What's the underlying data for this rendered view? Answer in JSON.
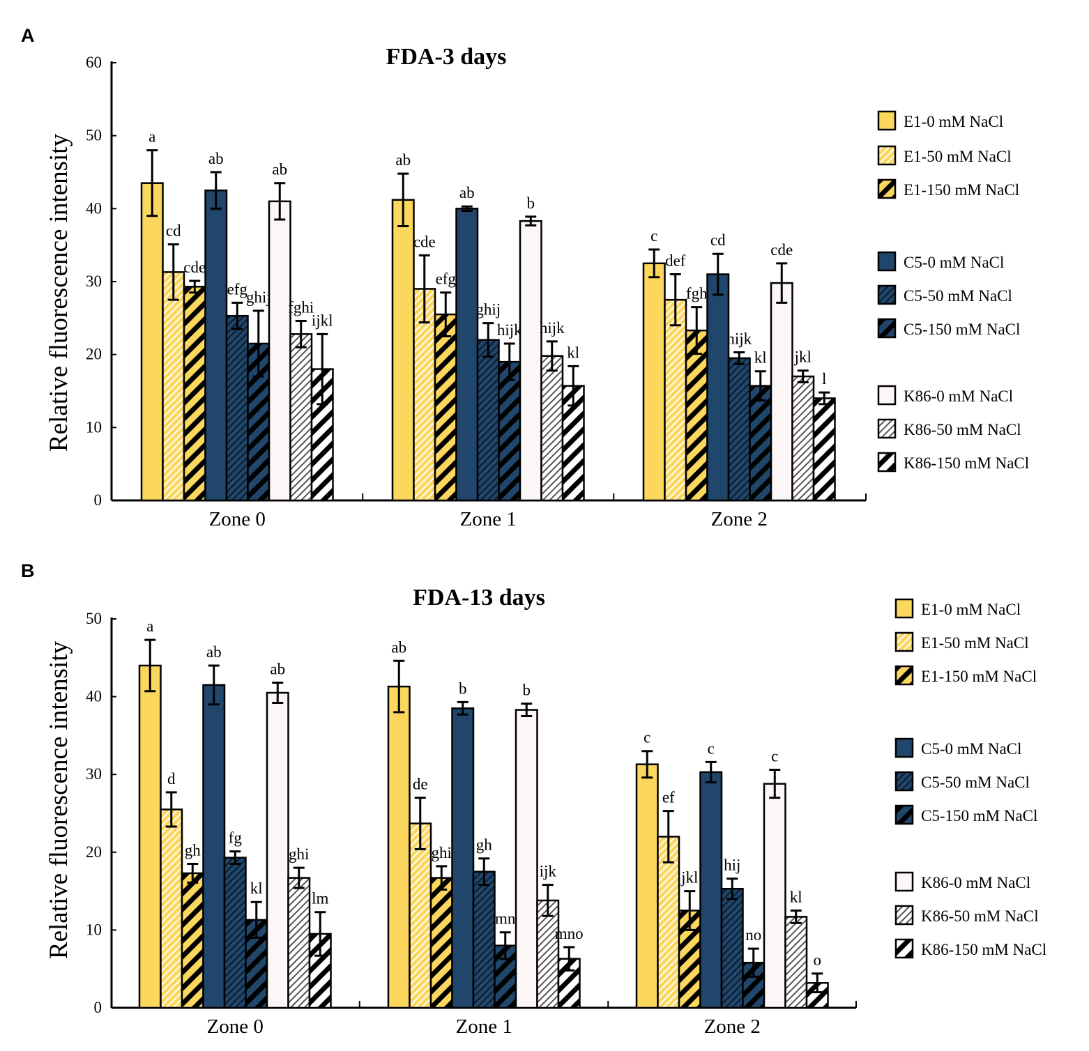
{
  "chart_data": [
    {
      "panel_label": "A",
      "type": "bar",
      "title": "FDA-3 days",
      "ylabel": "Relative fluorescence intensity",
      "xlabel": "",
      "ylim": [
        0,
        60
      ],
      "yticks": [
        0,
        10,
        20,
        30,
        40,
        50,
        60
      ],
      "categories": [
        "Zone 0",
        "Zone 1",
        "Zone 2"
      ],
      "series": [
        {
          "name": "E1-0 mM NaCl",
          "values": [
            43.5,
            41.2,
            32.5
          ],
          "errors": [
            4.5,
            3.6,
            1.9
          ],
          "letters": [
            "a",
            "ab",
            "c"
          ]
        },
        {
          "name": "E1-50 mM NaCl",
          "values": [
            31.3,
            29.0,
            27.5
          ],
          "errors": [
            3.8,
            4.6,
            3.5
          ],
          "letters": [
            "cd",
            "cde",
            "def"
          ]
        },
        {
          "name": "E1-150 mM NaCl",
          "values": [
            29.3,
            25.5,
            23.3
          ],
          "errors": [
            0.8,
            3.0,
            3.2
          ],
          "letters": [
            "cde",
            "efg",
            "fgh"
          ]
        },
        {
          "name": "C5-0 mM NaCl",
          "values": [
            42.5,
            40.0,
            31.0
          ],
          "errors": [
            2.5,
            0.3,
            2.8
          ],
          "letters": [
            "ab",
            "ab",
            "cd"
          ]
        },
        {
          "name": "C5-50 mM NaCl",
          "values": [
            25.3,
            22.0,
            19.5
          ],
          "errors": [
            1.8,
            2.3,
            0.8
          ],
          "letters": [
            "efg",
            "ghij",
            "hijk"
          ]
        },
        {
          "name": "C5-150 mM NaCl",
          "values": [
            21.5,
            19.0,
            15.7
          ],
          "errors": [
            4.5,
            2.5,
            2.0
          ],
          "letters": [
            "ghij",
            "hijk",
            "kl"
          ]
        },
        {
          "name": "K86-0 mM NaCl",
          "values": [
            41.0,
            38.3,
            29.8
          ],
          "errors": [
            2.5,
            0.6,
            2.7
          ],
          "letters": [
            "ab",
            "b",
            "cde"
          ]
        },
        {
          "name": "K86-50 mM NaCl",
          "values": [
            22.8,
            19.8,
            17.0
          ],
          "errors": [
            1.8,
            2.0,
            0.8
          ],
          "letters": [
            "fghi",
            "hijk",
            "jkl"
          ]
        },
        {
          "name": "K86-150 mM NaCl",
          "values": [
            18.0,
            15.7,
            14.0
          ],
          "errors": [
            4.8,
            2.7,
            0.8
          ],
          "letters": [
            "ijkl",
            "kl",
            "l"
          ]
        }
      ]
    },
    {
      "panel_label": "B",
      "type": "bar",
      "title": "FDA-13 days",
      "ylabel": "Relative fluorescence intensity",
      "xlabel": "",
      "ylim": [
        0,
        50
      ],
      "yticks": [
        0,
        10,
        20,
        30,
        40,
        50
      ],
      "categories": [
        "Zone 0",
        "Zone 1",
        "Zone 2"
      ],
      "series": [
        {
          "name": "E1-0 mM NaCl",
          "values": [
            44.0,
            41.3,
            31.3
          ],
          "errors": [
            3.3,
            3.3,
            1.7
          ],
          "letters": [
            "a",
            "ab",
            "c"
          ]
        },
        {
          "name": "E1-50 mM NaCl",
          "values": [
            25.5,
            23.7,
            22.0
          ],
          "errors": [
            2.2,
            3.3,
            3.3
          ],
          "letters": [
            "d",
            "de",
            "ef"
          ]
        },
        {
          "name": "E1-150 mM NaCl",
          "values": [
            17.3,
            16.7,
            12.5
          ],
          "errors": [
            1.2,
            1.5,
            2.5
          ],
          "letters": [
            "gh",
            "ghi",
            "jkl"
          ]
        },
        {
          "name": "C5-0 mM NaCl",
          "values": [
            41.5,
            38.5,
            30.3
          ],
          "errors": [
            2.5,
            0.8,
            1.3
          ],
          "letters": [
            "ab",
            "b",
            "c"
          ]
        },
        {
          "name": "C5-50 mM NaCl",
          "values": [
            19.3,
            17.5,
            15.3
          ],
          "errors": [
            0.8,
            1.7,
            1.3
          ],
          "letters": [
            "fg",
            "gh",
            "hij"
          ]
        },
        {
          "name": "C5-150 mM NaCl",
          "values": [
            11.3,
            8.0,
            5.8
          ],
          "errors": [
            2.3,
            1.7,
            1.8
          ],
          "letters": [
            "kl",
            "mn",
            "no"
          ]
        },
        {
          "name": "K86-0 mM NaCl",
          "values": [
            40.5,
            38.3,
            28.8
          ],
          "errors": [
            1.3,
            0.8,
            1.8
          ],
          "letters": [
            "ab",
            "b",
            "c"
          ]
        },
        {
          "name": "K86-50 mM NaCl",
          "values": [
            16.7,
            13.8,
            11.7
          ],
          "errors": [
            1.3,
            2.0,
            0.8
          ],
          "letters": [
            "ghi",
            "ijk",
            "kl"
          ]
        },
        {
          "name": "K86-150 mM NaCl",
          "values": [
            9.5,
            6.3,
            3.2
          ],
          "errors": [
            2.8,
            1.5,
            1.2
          ],
          "letters": [
            "lm",
            "mno",
            "o"
          ]
        }
      ]
    }
  ],
  "colors": {
    "e1": "#fcd75e",
    "c5": "#20466c",
    "k86": "#fdf6f7",
    "stroke": "#000000"
  }
}
